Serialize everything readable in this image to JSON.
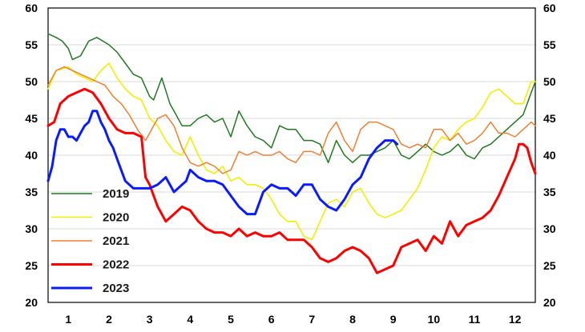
{
  "chart_data": {
    "type": "line",
    "xlabel": "",
    "ylabel": "",
    "x_ticks": [
      "1",
      "2",
      "3",
      "4",
      "5",
      "6",
      "7",
      "8",
      "9",
      "10",
      "11",
      "12"
    ],
    "xlim": [
      0.5,
      12.5
    ],
    "ylim": [
      20,
      60
    ],
    "y_ticks": [
      "20",
      "25",
      "30",
      "35",
      "40",
      "45",
      "50",
      "55",
      "60"
    ],
    "grid": true,
    "legend_position": "bottom-left",
    "series": [
      {
        "name": "2019",
        "color": "#1f7a1f",
        "x": [
          0.5,
          0.7,
          0.85,
          1.0,
          1.1,
          1.3,
          1.5,
          1.7,
          2.0,
          2.2,
          2.4,
          2.6,
          2.8,
          3.0,
          3.1,
          3.3,
          3.5,
          3.6,
          3.8,
          4.0,
          4.2,
          4.4,
          4.6,
          4.8,
          5.0,
          5.2,
          5.4,
          5.6,
          5.8,
          6.0,
          6.2,
          6.4,
          6.6,
          6.8,
          7.0,
          7.2,
          7.4,
          7.6,
          7.8,
          8.0,
          8.2,
          8.4,
          8.6,
          8.8,
          9.0,
          9.2,
          9.4,
          9.6,
          9.8,
          10.0,
          10.2,
          10.4,
          10.6,
          10.8,
          11.0,
          11.2,
          11.4,
          11.6,
          11.8,
          12.0,
          12.2,
          12.4,
          12.5
        ],
        "y": [
          56.5,
          56,
          55.5,
          54.5,
          53,
          53.5,
          55.5,
          56,
          55,
          54,
          52.5,
          51,
          50.5,
          48,
          47.5,
          50.5,
          47,
          46,
          44,
          44,
          45,
          45.5,
          44.5,
          45,
          42.5,
          46,
          44,
          42.5,
          42,
          41,
          44,
          43.5,
          43.5,
          42,
          42,
          41.5,
          39,
          42,
          40,
          39,
          40,
          40,
          40.5,
          41,
          42,
          40,
          39.5,
          40.5,
          41.5,
          40.5,
          40,
          40.5,
          41.5,
          40,
          39.5,
          41,
          41.5,
          42.5,
          43.5,
          44.5,
          45.5,
          48.5,
          50
        ]
      },
      {
        "name": "2020",
        "color": "#f0f000",
        "x": [
          0.5,
          0.7,
          1.0,
          1.2,
          1.4,
          1.6,
          1.8,
          2.0,
          2.2,
          2.4,
          2.6,
          2.8,
          3.0,
          3.2,
          3.4,
          3.6,
          3.8,
          4.0,
          4.2,
          4.4,
          4.6,
          4.8,
          5.0,
          5.2,
          5.4,
          5.6,
          5.8,
          6.0,
          6.2,
          6.4,
          6.6,
          6.8,
          7.0,
          7.2,
          7.4,
          7.6,
          7.8,
          8.0,
          8.2,
          8.4,
          8.6,
          8.8,
          9.0,
          9.2,
          9.4,
          9.6,
          9.8,
          10.0,
          10.2,
          10.4,
          10.6,
          10.8,
          11.0,
          11.2,
          11.4,
          11.6,
          11.8,
          12.0,
          12.2,
          12.4,
          12.5
        ],
        "y": [
          49,
          51.5,
          52,
          51,
          50.5,
          50,
          51.5,
          52.5,
          50.5,
          49,
          48,
          47.5,
          45,
          44,
          42,
          40.5,
          40,
          42.5,
          40,
          38,
          37.5,
          38.5,
          36.5,
          37,
          36,
          36,
          35.5,
          34,
          32,
          31,
          31,
          29,
          28.5,
          31,
          33.5,
          34,
          33,
          35,
          35.5,
          33.5,
          32,
          31.5,
          32,
          32.5,
          34,
          35.5,
          38,
          41,
          42.5,
          42,
          43.5,
          44.5,
          45,
          46.5,
          48.5,
          49,
          48,
          47,
          47,
          50,
          50
        ]
      },
      {
        "name": "2021",
        "color": "#f07f30",
        "x": [
          0.5,
          0.7,
          0.9,
          1.1,
          1.3,
          1.5,
          1.7,
          1.9,
          2.1,
          2.3,
          2.5,
          2.7,
          2.9,
          3.0,
          3.2,
          3.4,
          3.6,
          3.8,
          4.0,
          4.2,
          4.4,
          4.6,
          4.8,
          5.0,
          5.2,
          5.4,
          5.6,
          5.8,
          6.0,
          6.2,
          6.4,
          6.6,
          6.8,
          7.0,
          7.2,
          7.4,
          7.6,
          7.8,
          8.0,
          8.2,
          8.4,
          8.6,
          8.8,
          9.0,
          9.2,
          9.4,
          9.6,
          9.8,
          10.0,
          10.2,
          10.4,
          10.6,
          10.8,
          11.0,
          11.2,
          11.4,
          11.6,
          11.8,
          12.0,
          12.2,
          12.4,
          12.5
        ],
        "y": [
          49.5,
          51.5,
          52,
          51.5,
          51,
          50.5,
          50,
          49.5,
          48,
          47,
          45.5,
          43.5,
          42,
          43,
          45,
          45.5,
          44,
          41,
          39,
          38.5,
          39,
          38.5,
          37.5,
          38,
          40.5,
          40,
          40.5,
          40,
          40,
          40.5,
          39.5,
          39,
          40.5,
          40.5,
          40,
          43,
          44.5,
          42,
          40.5,
          43.5,
          44.5,
          44.5,
          44,
          43.5,
          41.5,
          41,
          41.5,
          41,
          43.5,
          43.5,
          42,
          43,
          41.5,
          42,
          43,
          44.5,
          43,
          43,
          42.5,
          43.5,
          44.5,
          44
        ]
      },
      {
        "name": "2022",
        "color": "#ff0000",
        "x": [
          0.5,
          0.65,
          0.8,
          1.0,
          1.2,
          1.4,
          1.6,
          1.8,
          2.0,
          2.2,
          2.4,
          2.6,
          2.8,
          2.9,
          3.0,
          3.1,
          3.2,
          3.4,
          3.6,
          3.8,
          4.0,
          4.2,
          4.4,
          4.6,
          4.8,
          5.0,
          5.2,
          5.4,
          5.6,
          5.8,
          6.0,
          6.2,
          6.4,
          6.6,
          6.8,
          7.0,
          7.2,
          7.4,
          7.6,
          7.8,
          8.0,
          8.2,
          8.4,
          8.6,
          8.8,
          9.0,
          9.2,
          9.4,
          9.6,
          9.8,
          10.0,
          10.2,
          10.4,
          10.6,
          10.8,
          11.0,
          11.2,
          11.4,
          11.6,
          11.8,
          12.0,
          12.1,
          12.2,
          12.3,
          12.4,
          12.5
        ],
        "y": [
          44,
          44.5,
          47,
          48,
          48.5,
          49,
          48.5,
          47,
          45,
          43.5,
          43,
          43,
          42.5,
          37,
          36,
          34.5,
          33,
          31,
          32,
          33,
          32.5,
          31,
          30,
          29.5,
          29.5,
          29,
          30,
          29,
          29.5,
          29,
          29,
          29.5,
          28.5,
          28.5,
          28.5,
          27.5,
          26,
          25.5,
          26,
          27,
          27.5,
          27,
          26,
          24,
          24.5,
          25,
          27.5,
          28,
          28.5,
          27,
          29,
          28,
          31,
          29,
          30.5,
          31,
          31.5,
          32.5,
          34.5,
          37,
          39.5,
          41.5,
          41.5,
          41,
          39,
          37.5
        ]
      },
      {
        "name": "2023",
        "color": "#0a1bff",
        "x": [
          0.5,
          0.6,
          0.7,
          0.8,
          0.9,
          1.0,
          1.1,
          1.2,
          1.3,
          1.4,
          1.5,
          1.6,
          1.7,
          1.8,
          1.9,
          2.0,
          2.1,
          2.2,
          2.4,
          2.6,
          2.8,
          2.9,
          3.0,
          3.2,
          3.4,
          3.6,
          3.8,
          3.9,
          4.0,
          4.2,
          4.4,
          4.6,
          4.8,
          5.0,
          5.2,
          5.4,
          5.6,
          5.8,
          6.0,
          6.2,
          6.4,
          6.6,
          6.8,
          7.0,
          7.2,
          7.4,
          7.6,
          7.8,
          8.0,
          8.2,
          8.4,
          8.6,
          8.8,
          9.0,
          9.1
        ],
        "y": [
          36.5,
          38.5,
          42,
          43.5,
          43.5,
          42.5,
          42.5,
          42,
          43,
          44,
          44.5,
          46,
          46,
          44.5,
          43.5,
          42,
          41,
          39.5,
          36.5,
          35.5,
          35.5,
          35.5,
          35.5,
          36,
          37,
          35,
          36,
          36.5,
          38,
          37,
          36.5,
          36.5,
          36,
          34.5,
          33,
          32,
          32,
          35,
          36,
          35.5,
          35.5,
          34.5,
          36,
          36,
          34,
          33,
          32.5,
          34,
          36,
          37,
          39.5,
          41,
          42,
          42,
          41.5
        ]
      }
    ]
  }
}
